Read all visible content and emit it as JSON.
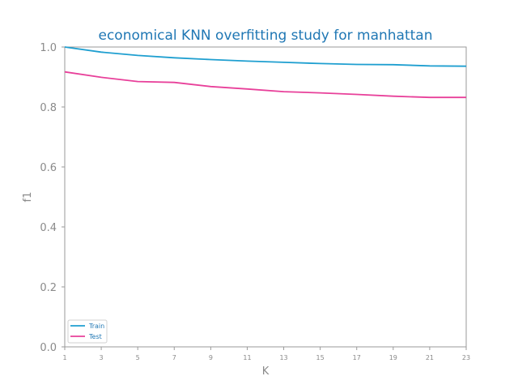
{
  "chart_data": {
    "type": "line",
    "title": "economical KNN overfitting study for manhattan",
    "xlabel": "K",
    "ylabel": "f1",
    "x": [
      1,
      3,
      5,
      7,
      9,
      11,
      13,
      15,
      17,
      19,
      21,
      23
    ],
    "xlim": [
      1,
      23
    ],
    "ylim": [
      0.0,
      1.0
    ],
    "x_ticks": [
      1,
      3,
      5,
      7,
      9,
      11,
      13,
      15,
      17,
      19,
      21,
      23
    ],
    "y_ticks": [
      "0.0",
      "0.2",
      "0.4",
      "0.6",
      "0.8",
      "1.0"
    ],
    "grid": false,
    "legend_position": "lower-left",
    "series": [
      {
        "name": "Train",
        "color": "#1f9fd0",
        "values": [
          1.0,
          0.983,
          0.972,
          0.964,
          0.958,
          0.953,
          0.949,
          0.945,
          0.942,
          0.941,
          0.937,
          0.936
        ]
      },
      {
        "name": "Test",
        "color": "#e8409a",
        "values": [
          0.917,
          0.899,
          0.885,
          0.882,
          0.868,
          0.86,
          0.851,
          0.847,
          0.842,
          0.836,
          0.832,
          0.832
        ]
      }
    ]
  }
}
